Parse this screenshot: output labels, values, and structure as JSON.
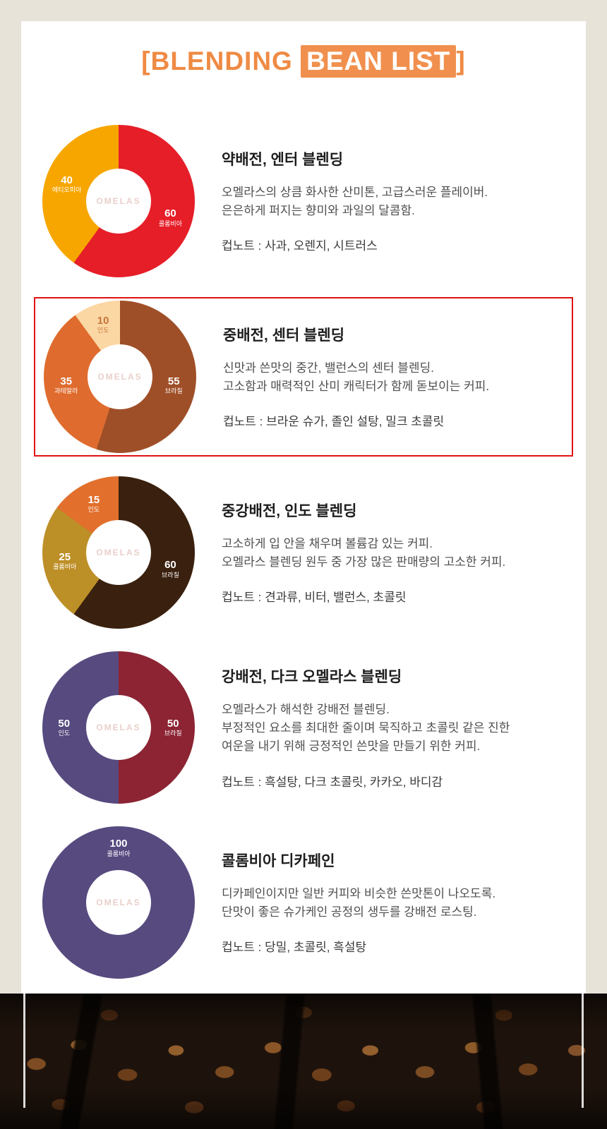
{
  "header": {
    "prefix": "[BLENDING ",
    "highlight": "BEAN LIST",
    "suffix": "]"
  },
  "watermark": "OMELAS",
  "colors": {
    "accent_orange": "#ef8a44",
    "highlight_border": "#e01212",
    "page_bg": "#e7e3d8"
  },
  "sections": [
    {
      "title": "약배전, 엔터 블렌딩",
      "body": "오멜라스의 상큼 화사한 산미톤, 고급스러운 플레이버.\n은은하게 퍼지는 향미와 과일의 달콤함.",
      "cup_note": "컵노트 : 사과, 오렌지, 시트러스"
    },
    {
      "title": "중배전, 센터 블렌딩",
      "body": "신맛과 쓴맛의 중간, 밸런스의 센터 블렌딩.\n고소함과 매력적인 산미 캐릭터가 함께 돋보이는 커피.",
      "cup_note": "컵노트 : 브라운 슈가, 졸인 설탕, 밀크 초콜릿"
    },
    {
      "title": "중강배전, 인도 블렌딩",
      "body": "고소하게 입 안을 채우며 볼륨감 있는 커피.\n오멜라스 블렌딩 원두 중 가장 많은 판매량의 고소한 커피.",
      "cup_note": "컵노트 : 견과류, 비터, 밸런스, 초콜릿"
    },
    {
      "title": "강배전, 다크 오멜라스 블렌딩",
      "body": "오멜라스가 해석한 강배전 블렌딩.\n부정적인 요소를 최대한 줄이며 묵직하고 초콜릿 같은 진한\n여운을 내기 위해 긍정적인 쓴맛을 만들기 위한 커피.",
      "cup_note": "컵노트 : 흑설탕, 다크 초콜릿, 카카오, 바디감"
    },
    {
      "title": "콜롬비아 디카페인",
      "body": "디카페인이지만 일반 커피와 비슷한 쓴맛톤이 나오도록.\n단맛이 좋은 슈가케인 공정의 생두를 강배전 로스팅.",
      "cup_note": "컵노트 : 당밀, 초콜릿, 흑설탕"
    }
  ],
  "chart_data": [
    {
      "type": "pie",
      "title": "약배전, 엔터 블렌딩",
      "unit": "%",
      "slices": [
        {
          "value": 60,
          "label": "콜롬비아",
          "color": "#e61e28"
        },
        {
          "value": 40,
          "label": "에티오피아",
          "color": "#f7a600"
        }
      ]
    },
    {
      "type": "pie",
      "title": "중배전, 센터 블렌딩",
      "unit": "%",
      "slices": [
        {
          "value": 55,
          "label": "브라질",
          "color": "#9f4f28"
        },
        {
          "value": 35,
          "label": "과테말라",
          "color": "#df6c2e"
        },
        {
          "value": 10,
          "label": "인도",
          "color": "#fbd7a4",
          "text_color": "#c8763a"
        }
      ]
    },
    {
      "type": "pie",
      "title": "중강배전, 인도 블렌딩",
      "unit": "%",
      "slices": [
        {
          "value": 60,
          "label": "브라질",
          "color": "#3a200e"
        },
        {
          "value": 25,
          "label": "콜롬비아",
          "color": "#bd8f27"
        },
        {
          "value": 15,
          "label": "인도",
          "color": "#e26f2c"
        }
      ]
    },
    {
      "type": "pie",
      "title": "강배전, 다크 오멜라스 블렌딩",
      "unit": "%",
      "slices": [
        {
          "value": 50,
          "label": "브라질",
          "color": "#8c2433"
        },
        {
          "value": 50,
          "label": "인도",
          "color": "#574a7f"
        }
      ]
    },
    {
      "type": "pie",
      "title": "콜롬비아 디카페인",
      "unit": "%",
      "slices": [
        {
          "value": 100,
          "label": "콜롬비아",
          "color": "#574a7f",
          "label_angle": 0
        }
      ]
    }
  ]
}
